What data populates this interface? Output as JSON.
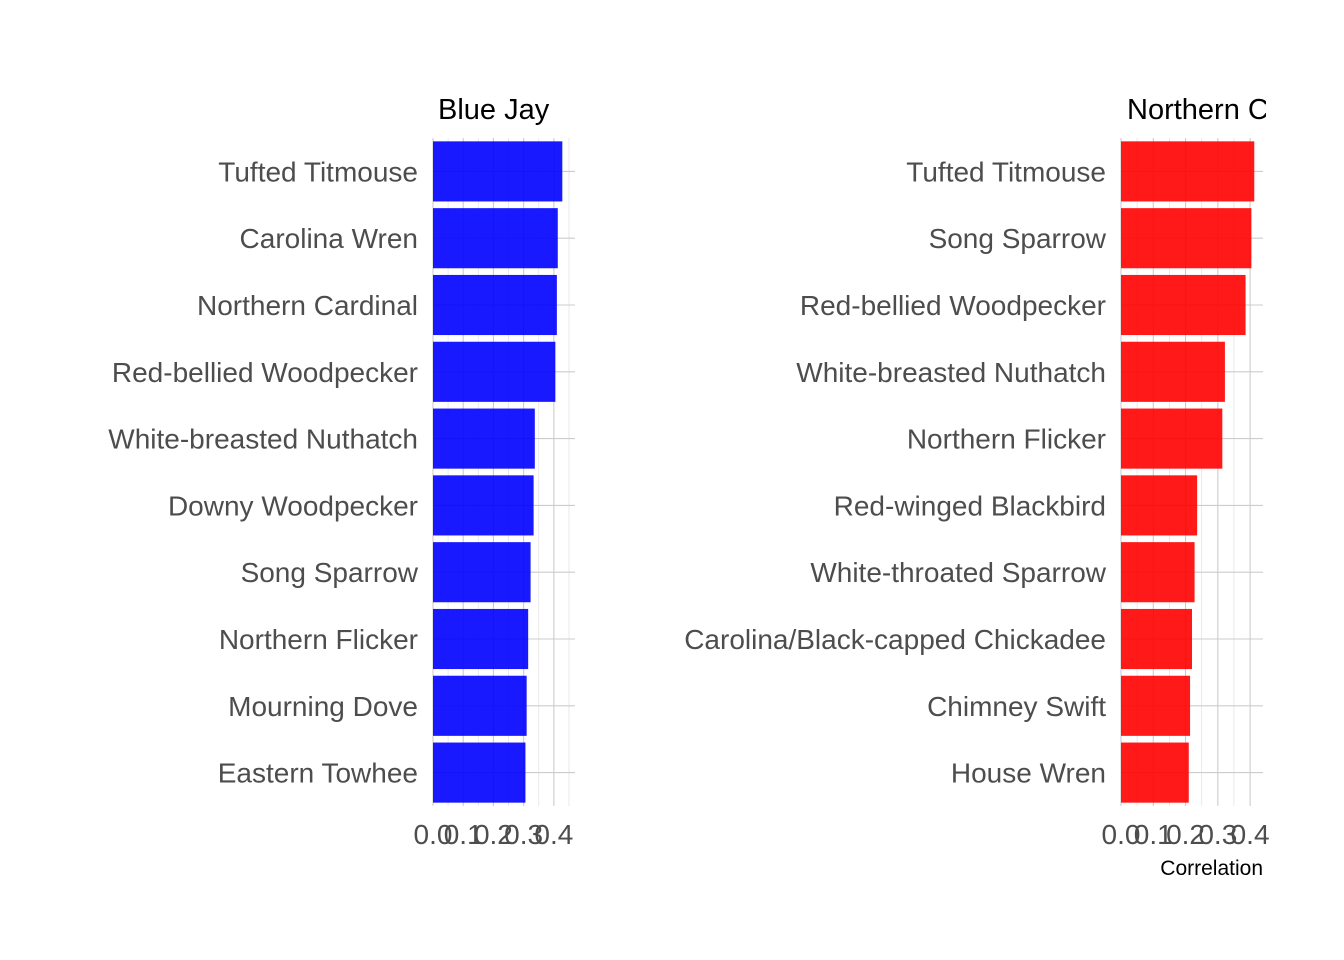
{
  "chart_data": [
    {
      "type": "bar",
      "orientation": "horizontal",
      "title": "Blue Jay",
      "categories": [
        "Tufted Titmouse",
        "Carolina Wren",
        "Northern Cardinal",
        "Red-bellied Woodpecker",
        "White-breasted Nuthatch",
        "Downy Woodpecker",
        "Song Sparrow",
        "Northern Flicker",
        "Mourning Dove",
        "Eastern Towhee"
      ],
      "values": [
        0.428,
        0.413,
        0.41,
        0.405,
        0.337,
        0.333,
        0.323,
        0.315,
        0.31,
        0.306
      ],
      "xlim": [
        0,
        0.47
      ],
      "xticks": [
        0.0,
        0.1,
        0.2,
        0.3,
        0.4
      ],
      "xtick_labels": [
        "0.0",
        "0.1",
        "0.2",
        "0.3",
        "0.4"
      ],
      "xlabel": "",
      "color": "#0000ff",
      "opacity": 0.9,
      "grid": true,
      "legend": "none"
    },
    {
      "type": "bar",
      "orientation": "horizontal",
      "title": "Northern C",
      "categories": [
        "Tufted Titmouse",
        "Song Sparrow",
        "Red-bellied Woodpecker",
        "White-breasted Nuthatch",
        "Northern Flicker",
        "Red-winged Blackbird",
        "White-throated Sparrow",
        "Carolina/Black-capped Chickadee",
        "Chimney Swift",
        "House Wren"
      ],
      "values": [
        0.413,
        0.404,
        0.386,
        0.322,
        0.314,
        0.236,
        0.228,
        0.22,
        0.214,
        0.21
      ],
      "xlim": [
        0,
        0.44
      ],
      "xticks": [
        0.0,
        0.1,
        0.2,
        0.3,
        0.4
      ],
      "xtick_labels": [
        "0.0",
        "0.1",
        "0.2",
        "0.3",
        "0.4"
      ],
      "xlabel": "Correlation",
      "color": "#ff0000",
      "opacity": 0.9,
      "grid": true,
      "legend": "none"
    }
  ]
}
